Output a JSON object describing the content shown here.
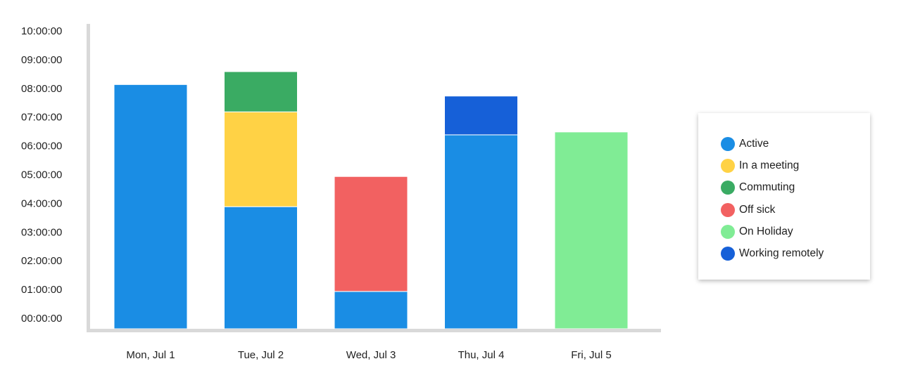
{
  "chart_data": {
    "type": "bar",
    "stacked": true,
    "categories": [
      "Mon, Jul 1",
      "Tue, Jul 2",
      "Wed, Jul 3",
      "Thu, Jul 4",
      "Fri, Jul 5"
    ],
    "y_ticks": [
      "00:00:00",
      "01:00:00",
      "02:00:00",
      "03:00:00",
      "04:00:00",
      "05:00:00",
      "06:00:00",
      "07:00:00",
      "08:00:00",
      "09:00:00",
      "10:00:00"
    ],
    "ylim_hours": [
      0,
      10
    ],
    "series": [
      {
        "name": "Active",
        "color": "#1a8de4",
        "values": [
          8.5,
          4.25,
          1.3,
          6.75,
          0
        ]
      },
      {
        "name": "In a meeting",
        "color": "#ffd245",
        "values": [
          0,
          3.3,
          0,
          0,
          0
        ]
      },
      {
        "name": "Commuting",
        "color": "#3aab63",
        "values": [
          0,
          1.4,
          0,
          0,
          0
        ]
      },
      {
        "name": "Off sick",
        "color": "#f26161",
        "values": [
          0,
          0,
          4.0,
          0,
          0
        ]
      },
      {
        "name": "On Holiday",
        "color": "#80ec95",
        "values": [
          0,
          0,
          0,
          0,
          6.85
        ]
      },
      {
        "name": "Working remotely",
        "color": "#1660d8",
        "values": [
          0,
          0,
          0,
          1.35,
          0
        ]
      }
    ],
    "grid": false,
    "legend_position": "right"
  }
}
